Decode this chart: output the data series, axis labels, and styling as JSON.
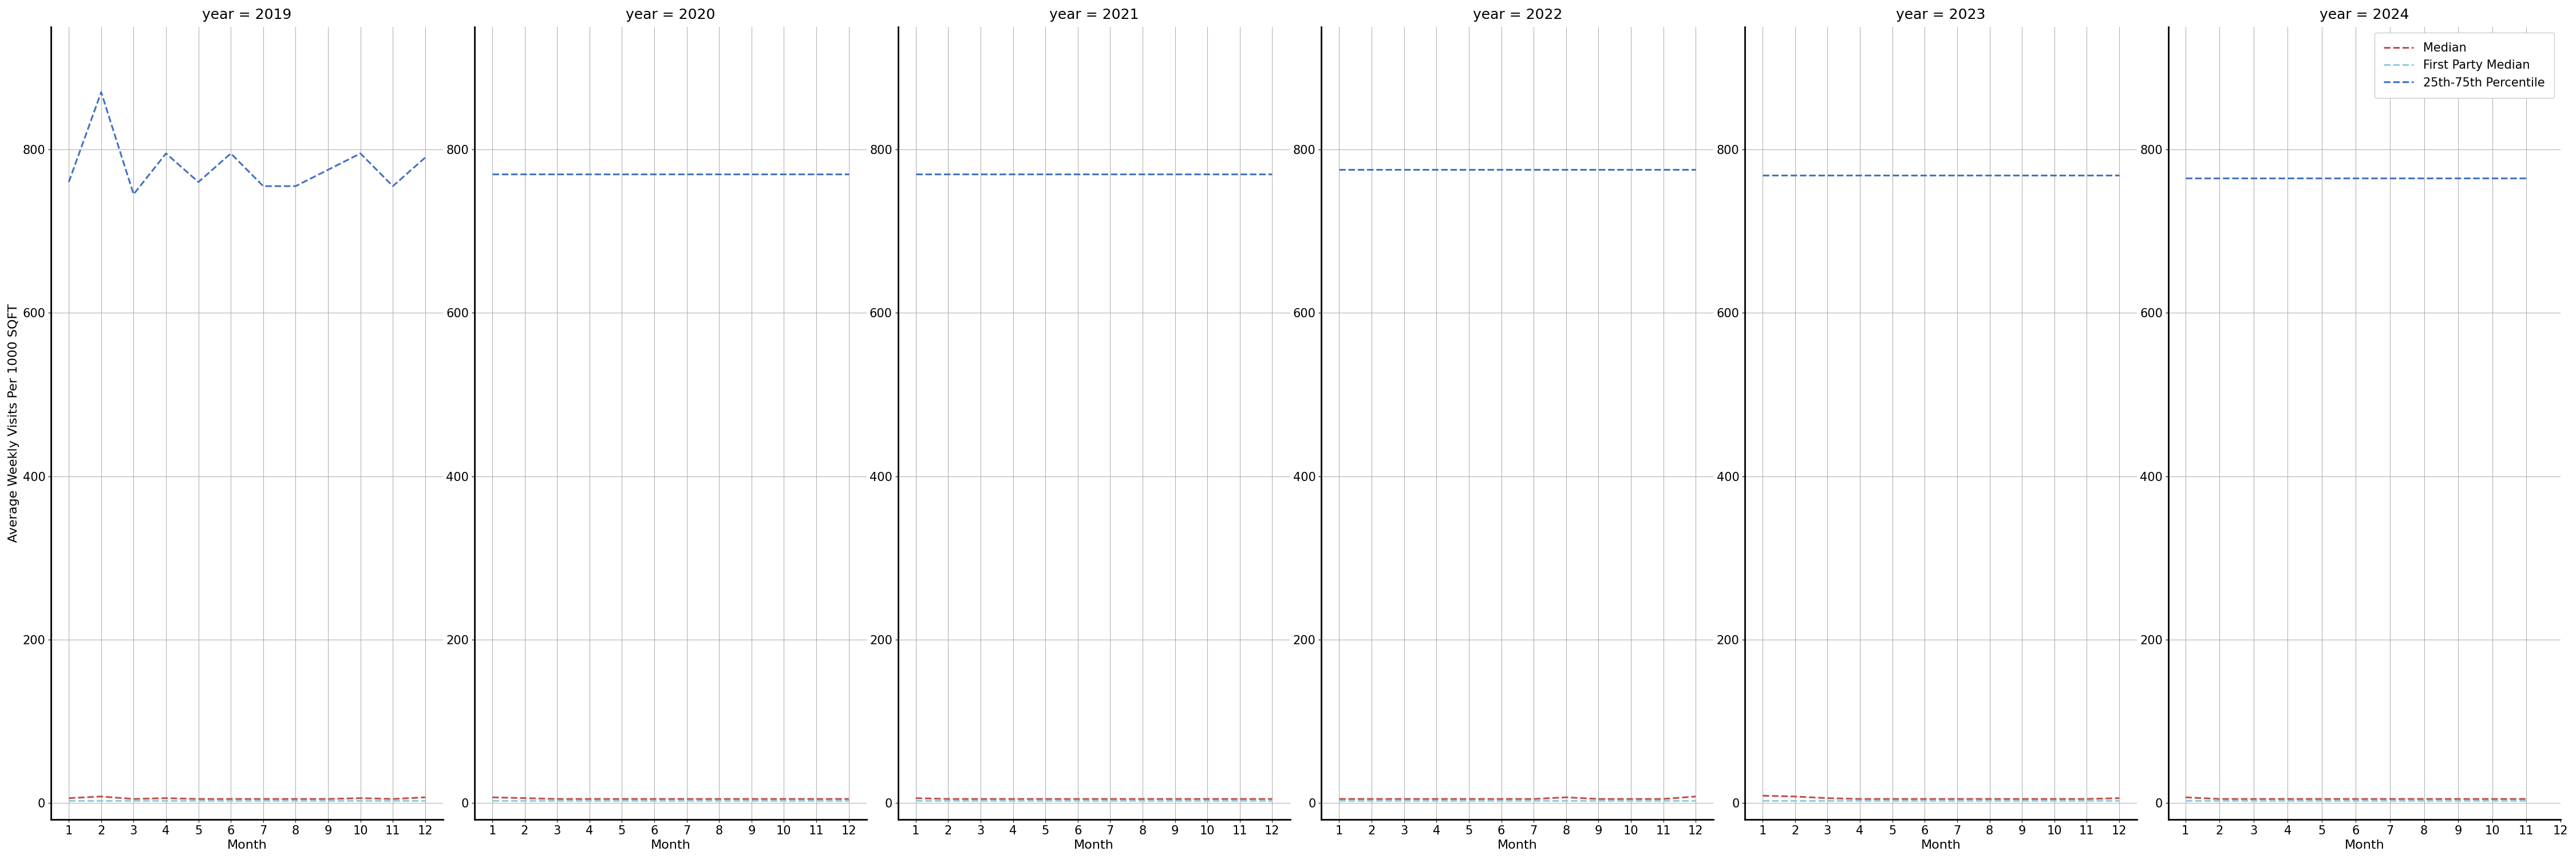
{
  "years": [
    2019,
    2020,
    2021,
    2022,
    2023,
    2024
  ],
  "months": [
    1,
    2,
    3,
    4,
    5,
    6,
    7,
    8,
    9,
    10,
    11,
    12
  ],
  "ylabel": "Average Weekly Visits Per 1000 SQFT",
  "xlabel": "Month",
  "ylim": [
    -20,
    950
  ],
  "yticks": [
    0,
    200,
    400,
    600,
    800
  ],
  "blue_line": {
    "2019": [
      760,
      870,
      745,
      795,
      760,
      795,
      755,
      755,
      775,
      795,
      755,
      790
    ],
    "2020": [
      770,
      770,
      770,
      770,
      770,
      770,
      770,
      770,
      770,
      770,
      770,
      770
    ],
    "2021": [
      770,
      770,
      770,
      770,
      770,
      770,
      770,
      770,
      770,
      770,
      770,
      770
    ],
    "2022": [
      775,
      775,
      775,
      775,
      775,
      775,
      775,
      775,
      775,
      775,
      775,
      775
    ],
    "2023": [
      768,
      768,
      768,
      768,
      768,
      768,
      768,
      768,
      768,
      768,
      768,
      768
    ],
    "2024": [
      765,
      765,
      765,
      765,
      765,
      765,
      765,
      765,
      765,
      765,
      765,
      null
    ]
  },
  "red_line": {
    "2019": [
      6,
      8,
      5,
      6,
      5,
      5,
      5,
      5,
      5,
      6,
      5,
      7
    ],
    "2020": [
      7,
      6,
      5,
      5,
      5,
      5,
      5,
      5,
      5,
      5,
      5,
      5
    ],
    "2021": [
      6,
      5,
      5,
      5,
      5,
      5,
      5,
      5,
      5,
      5,
      5,
      5
    ],
    "2022": [
      5,
      5,
      5,
      5,
      5,
      5,
      5,
      7,
      5,
      5,
      5,
      8
    ],
    "2023": [
      9,
      8,
      6,
      5,
      5,
      5,
      5,
      5,
      5,
      5,
      5,
      6
    ],
    "2024": [
      7,
      5,
      5,
      5,
      5,
      5,
      5,
      5,
      5,
      5,
      5,
      null
    ]
  },
  "first_party_line": {
    "2019": [
      3,
      3,
      3,
      3,
      3,
      3,
      3,
      3,
      3,
      3,
      3,
      3
    ],
    "2020": [
      3,
      3,
      3,
      3,
      3,
      3,
      3,
      3,
      3,
      3,
      3,
      3
    ],
    "2021": [
      3,
      3,
      3,
      3,
      3,
      3,
      3,
      3,
      3,
      3,
      3,
      3
    ],
    "2022": [
      3,
      3,
      3,
      3,
      3,
      3,
      3,
      3,
      3,
      3,
      3,
      3
    ],
    "2023": [
      3,
      3,
      3,
      3,
      3,
      3,
      3,
      3,
      3,
      3,
      3,
      3
    ],
    "2024": [
      3,
      3,
      3,
      3,
      3,
      3,
      3,
      3,
      3,
      3,
      3,
      null
    ]
  },
  "blue_color": "#4472C4",
  "red_color": "#C0504D",
  "first_party_color": "#92CDDC",
  "legend_labels": [
    "Median",
    "First Party Median",
    "25th-75th Percentile"
  ],
  "grid_color": "#AAAAAA",
  "title_fontsize": 18,
  "label_fontsize": 16,
  "tick_fontsize": 15,
  "legend_fontsize": 15
}
